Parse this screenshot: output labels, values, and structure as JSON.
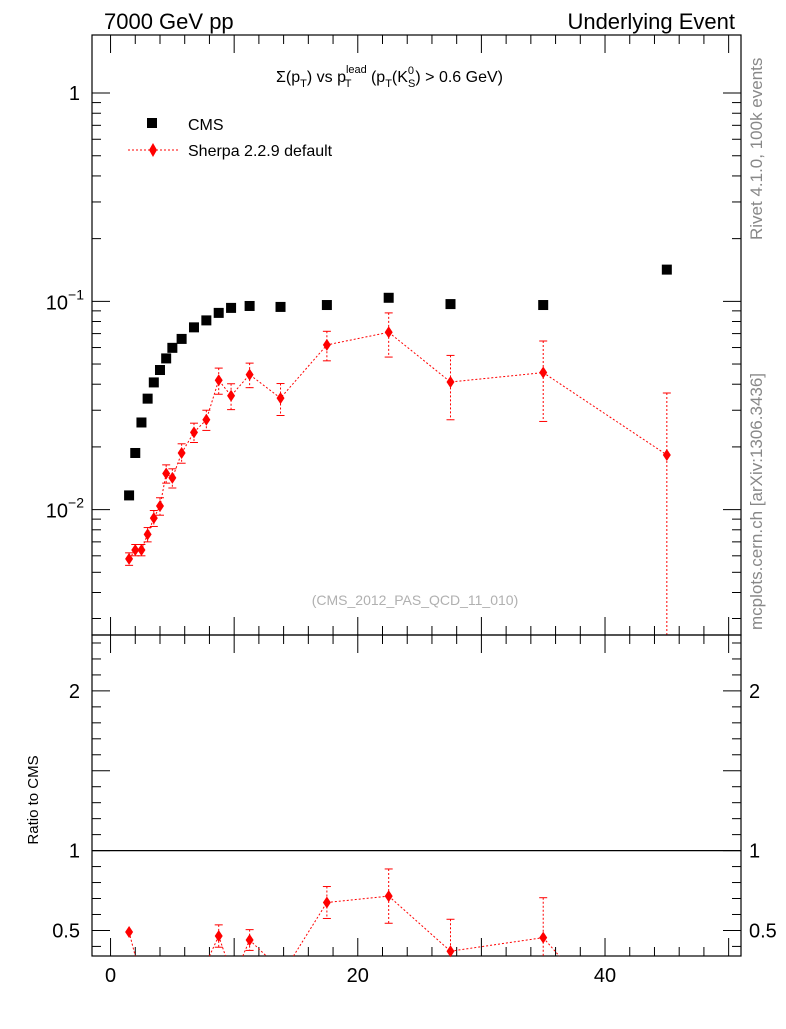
{
  "header": {
    "left_label": "7000 GeV pp",
    "right_label": "Underlying Event"
  },
  "side_labels": {
    "rivet": "Rivet 4.1.0,  100k events",
    "mcplots": "mcplots.cern.ch [arXiv:1306.3436]"
  },
  "chart_data": {
    "type": "scatter",
    "title": "Σ(pT) vs pT^lead (pT(K^0_S) > 0.6 GeV)",
    "title_parts": {
      "sigma_prefix": "Σ(p",
      "sub_T1": "T",
      "vs": ") vs p",
      "sup_lead": "lead",
      "sub_T2": "T",
      "open_pt": " (p",
      "sub_T3": "T",
      "open_K": "(K",
      "sup_0": "0",
      "sub_S": "S",
      "tail": ") > 0.6 GeV)"
    },
    "watermark": "(CMS_2012_PAS_QCD_11_010)",
    "xlim": [
      -1.5,
      51
    ],
    "ylim_log": [
      0.0025,
      1.9
    ],
    "x_ticks": [
      0,
      20,
      40
    ],
    "y_tick_labels": [
      {
        "base": "10",
        "exp": "−2",
        "value": 0.01
      },
      {
        "base": "10",
        "exp": "−1",
        "value": 0.1
      },
      {
        "base": "1",
        "exp": "",
        "value": 1
      }
    ],
    "ratio": {
      "ylabel": "Ratio to CMS",
      "ylim": [
        0.34,
        2.35
      ],
      "y_ticks": [
        "0.5",
        "1",
        "2"
      ],
      "y_tick_values": [
        0.5,
        1,
        2
      ]
    },
    "series": [
      {
        "name": "CMS",
        "color": "#000000",
        "marker": "square",
        "x": [
          1.5,
          2.0,
          2.5,
          3.0,
          3.5,
          4.0,
          4.5,
          5.0,
          5.75,
          6.75,
          7.75,
          8.75,
          9.75,
          11.25,
          13.75,
          17.5,
          22.5,
          27.5,
          35.0,
          45.0
        ],
        "y": [
          0.0117,
          0.0187,
          0.0262,
          0.0341,
          0.0408,
          0.0468,
          0.0532,
          0.0598,
          0.066,
          0.075,
          0.081,
          0.088,
          0.093,
          0.095,
          0.094,
          0.096,
          0.104,
          0.097,
          0.096,
          0.142
        ]
      },
      {
        "name": "Sherpa 2.2.9 default",
        "color": "#ff0000",
        "marker": "diamond",
        "x": [
          1.5,
          2.0,
          2.5,
          3.0,
          3.5,
          4.0,
          4.5,
          5.0,
          5.75,
          6.75,
          7.75,
          8.75,
          9.75,
          11.25,
          13.75,
          17.5,
          22.5,
          27.5,
          35.0,
          45.0
        ],
        "y": [
          0.0058,
          0.0064,
          0.0064,
          0.0076,
          0.0091,
          0.0104,
          0.0149,
          0.0142,
          0.0187,
          0.0235,
          0.027,
          0.0418,
          0.0352,
          0.0445,
          0.0343,
          0.0618,
          0.071,
          0.041,
          0.0455,
          0.0183
        ],
        "err": [
          0.0004,
          0.0004,
          0.0004,
          0.0006,
          0.0008,
          0.001,
          0.0015,
          0.0015,
          0.002,
          0.0025,
          0.003,
          0.006,
          0.005,
          0.006,
          0.006,
          0.01,
          0.017,
          0.014,
          0.019,
          0.018
        ],
        "ratio_x": [
          1.5,
          8.75,
          11.25,
          17.5,
          22.5,
          27.5,
          35.0
        ],
        "ratio_y": [
          0.49,
          0.465,
          0.44,
          0.675,
          0.715,
          0.37,
          0.455
        ],
        "ratio_err": [
          0.025,
          0.07,
          0.065,
          0.1,
          0.17,
          0.2,
          0.25
        ]
      }
    ]
  }
}
